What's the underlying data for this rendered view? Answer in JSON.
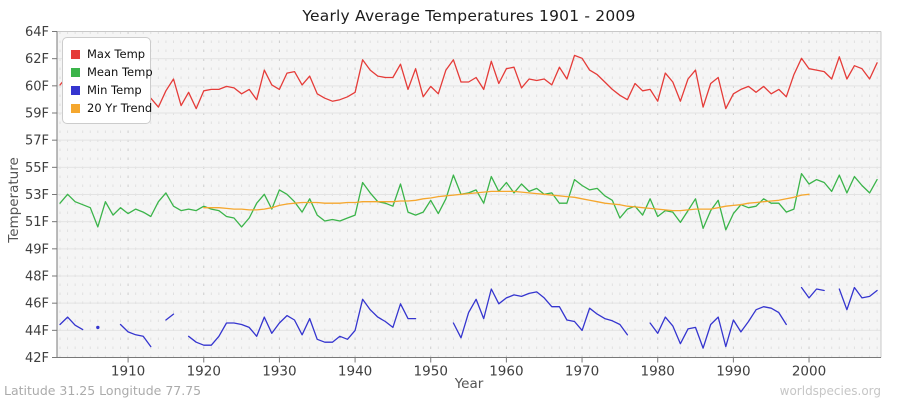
{
  "chart": {
    "title": "Yearly Average Temperatures 1901 - 2009",
    "x_axis_label": "Year",
    "y_axis_label": "Temperature",
    "footer_left": "Latitude 31.25 Longitude 77.75",
    "watermark": "worldspecies.org",
    "colors": {
      "plot_background": "#f5f5f5",
      "grid_horizontal": "#e3e3e3",
      "grid_vertical_year": "#e0e0e0",
      "grid_vertical_decade": "#cdcdcd",
      "border_light": "#c8c8c8",
      "axis": "#787878",
      "tick_text": "#3f3f3f"
    }
  },
  "chart_data": {
    "type": "line",
    "title": "Yearly Average Temperatures 1901 - 2009",
    "xlabel": "Year",
    "ylabel": "Temperature",
    "x_start": 1901,
    "x_end": 2009,
    "x_ticks": [
      1910,
      1920,
      1930,
      1940,
      1950,
      1960,
      1970,
      1980,
      1990,
      2000
    ],
    "ylim": [
      42,
      64
    ],
    "y_tick_labels_bottom_to_top": [
      "42F",
      "44F",
      "46F",
      "48F",
      "49F",
      "51F",
      "53F",
      "55F",
      "57F",
      "59F",
      "60F",
      "62F",
      "64F"
    ],
    "grid": true,
    "legend_position": "top-left",
    "series": [
      {
        "name": "Max Temp",
        "color": "#e53c39",
        "values": [
          60.4,
          61.0,
          60.6,
          60.0,
          59.1,
          60.4,
          60.1,
          60.0,
          60.5,
          59.7,
          59.7,
          59.6,
          59.5,
          58.9,
          60.0,
          60.8,
          59.0,
          59.9,
          58.8,
          60.0,
          60.1,
          60.1,
          60.3,
          60.2,
          59.8,
          60.1,
          59.4,
          61.4,
          60.4,
          60.1,
          61.2,
          61.3,
          60.4,
          61.0,
          59.8,
          59.5,
          59.3,
          59.4,
          59.6,
          59.9,
          62.1,
          61.4,
          61.0,
          60.9,
          60.9,
          61.8,
          60.1,
          61.5,
          59.6,
          60.3,
          59.8,
          61.4,
          62.1,
          60.6,
          60.6,
          60.9,
          60.1,
          62.0,
          60.5,
          61.5,
          61.6,
          60.2,
          60.8,
          60.7,
          60.8,
          60.4,
          61.6,
          60.8,
          62.4,
          62.2,
          61.4,
          61.1,
          60.6,
          60.1,
          59.7,
          59.4,
          60.5,
          60.0,
          60.1,
          59.3,
          61.2,
          60.6,
          59.3,
          60.8,
          61.4,
          58.9,
          60.5,
          60.9,
          58.8,
          59.8,
          60.1,
          60.3,
          59.9,
          60.3,
          59.8,
          60.1,
          59.6,
          61.1,
          62.2,
          61.5,
          61.4,
          61.3,
          60.8,
          62.3,
          60.8,
          61.7,
          61.5,
          60.8,
          61.9
        ]
      },
      {
        "name": "Mean Temp",
        "color": "#3bb44a",
        "values": [
          52.4,
          53.0,
          52.5,
          52.3,
          52.1,
          50.8,
          52.5,
          51.6,
          52.1,
          51.7,
          52.0,
          51.8,
          51.5,
          52.5,
          53.1,
          52.2,
          51.9,
          52.0,
          51.9,
          52.2,
          52.0,
          51.9,
          51.5,
          51.4,
          50.8,
          51.4,
          52.4,
          53.0,
          52.0,
          53.3,
          53.0,
          52.5,
          51.8,
          52.7,
          51.6,
          51.2,
          51.3,
          51.2,
          51.4,
          51.6,
          53.8,
          53.1,
          52.5,
          52.4,
          52.2,
          53.7,
          51.8,
          51.6,
          51.8,
          52.6,
          51.7,
          52.7,
          54.3,
          53.0,
          53.1,
          53.3,
          52.4,
          54.2,
          53.2,
          53.8,
          53.1,
          53.7,
          53.2,
          53.4,
          53.0,
          53.1,
          52.4,
          52.4,
          54.0,
          53.6,
          53.3,
          53.4,
          52.9,
          52.6,
          51.4,
          52.0,
          52.2,
          51.6,
          52.7,
          51.5,
          51.9,
          51.8,
          51.1,
          51.9,
          52.7,
          50.7,
          51.9,
          52.6,
          50.6,
          51.7,
          52.3,
          52.1,
          52.2,
          52.7,
          52.4,
          52.4,
          51.8,
          52.0,
          54.4,
          53.7,
          54.0,
          53.8,
          53.2,
          54.3,
          53.1,
          54.2,
          53.6,
          53.1,
          54.0
        ]
      },
      {
        "name": "Min Temp",
        "color": "#3535cf",
        "values": [
          44.2,
          44.7,
          44.15,
          43.85,
          null,
          44.0,
          null,
          null,
          44.2,
          43.7,
          43.5,
          43.4,
          42.7,
          null,
          44.5,
          44.9,
          null,
          43.4,
          43.0,
          42.8,
          42.8,
          43.4,
          44.3,
          44.3,
          44.2,
          44.0,
          43.4,
          44.7,
          43.6,
          44.3,
          44.8,
          44.5,
          43.5,
          44.6,
          43.2,
          43.0,
          43.0,
          43.4,
          43.2,
          43.8,
          45.9,
          45.2,
          44.7,
          44.4,
          44.0,
          45.6,
          44.6,
          44.6,
          null,
          null,
          null,
          null,
          44.3,
          43.3,
          45.0,
          45.9,
          44.6,
          46.6,
          45.6,
          46.0,
          46.2,
          46.1,
          46.3,
          46.4,
          46.0,
          45.4,
          45.4,
          44.5,
          44.4,
          43.8,
          45.3,
          44.9,
          44.6,
          44.45,
          44.2,
          43.5,
          null,
          null,
          44.3,
          43.6,
          44.7,
          44.1,
          42.9,
          43.9,
          44.0,
          42.6,
          44.2,
          44.7,
          42.7,
          44.5,
          43.7,
          44.4,
          45.2,
          45.4,
          45.3,
          45.0,
          44.2,
          null,
          46.7,
          46.0,
          46.6,
          46.5,
          null,
          46.6,
          45.2,
          46.7,
          46.0,
          46.1,
          46.5
        ]
      },
      {
        "name": "20 Yr Trend",
        "color": "#f5a72e",
        "values": [
          null,
          null,
          null,
          null,
          null,
          null,
          null,
          null,
          null,
          null,
          null,
          null,
          null,
          null,
          null,
          null,
          null,
          null,
          null,
          52.1,
          52.1,
          52.1,
          52.05,
          52.0,
          52.0,
          51.95,
          51.95,
          52.0,
          52.1,
          52.25,
          52.35,
          52.4,
          52.45,
          52.45,
          52.45,
          52.4,
          52.4,
          52.4,
          52.45,
          52.45,
          52.5,
          52.5,
          52.5,
          52.5,
          52.5,
          52.55,
          52.55,
          52.6,
          52.7,
          52.75,
          52.85,
          52.9,
          52.95,
          53.0,
          53.05,
          53.1,
          53.15,
          53.2,
          53.2,
          53.2,
          53.2,
          53.15,
          53.1,
          53.05,
          53.0,
          52.95,
          52.9,
          52.85,
          52.8,
          52.7,
          52.6,
          52.5,
          52.4,
          52.35,
          52.3,
          52.2,
          52.15,
          52.1,
          52.05,
          52.0,
          51.95,
          51.9,
          51.9,
          51.95,
          52.0,
          52.0,
          52.0,
          52.1,
          52.2,
          52.25,
          52.3,
          52.4,
          52.45,
          52.5,
          52.55,
          52.6,
          52.7,
          52.8,
          52.95,
          53.0,
          null,
          null,
          null,
          null,
          null,
          null,
          null,
          null,
          null
        ]
      }
    ]
  }
}
